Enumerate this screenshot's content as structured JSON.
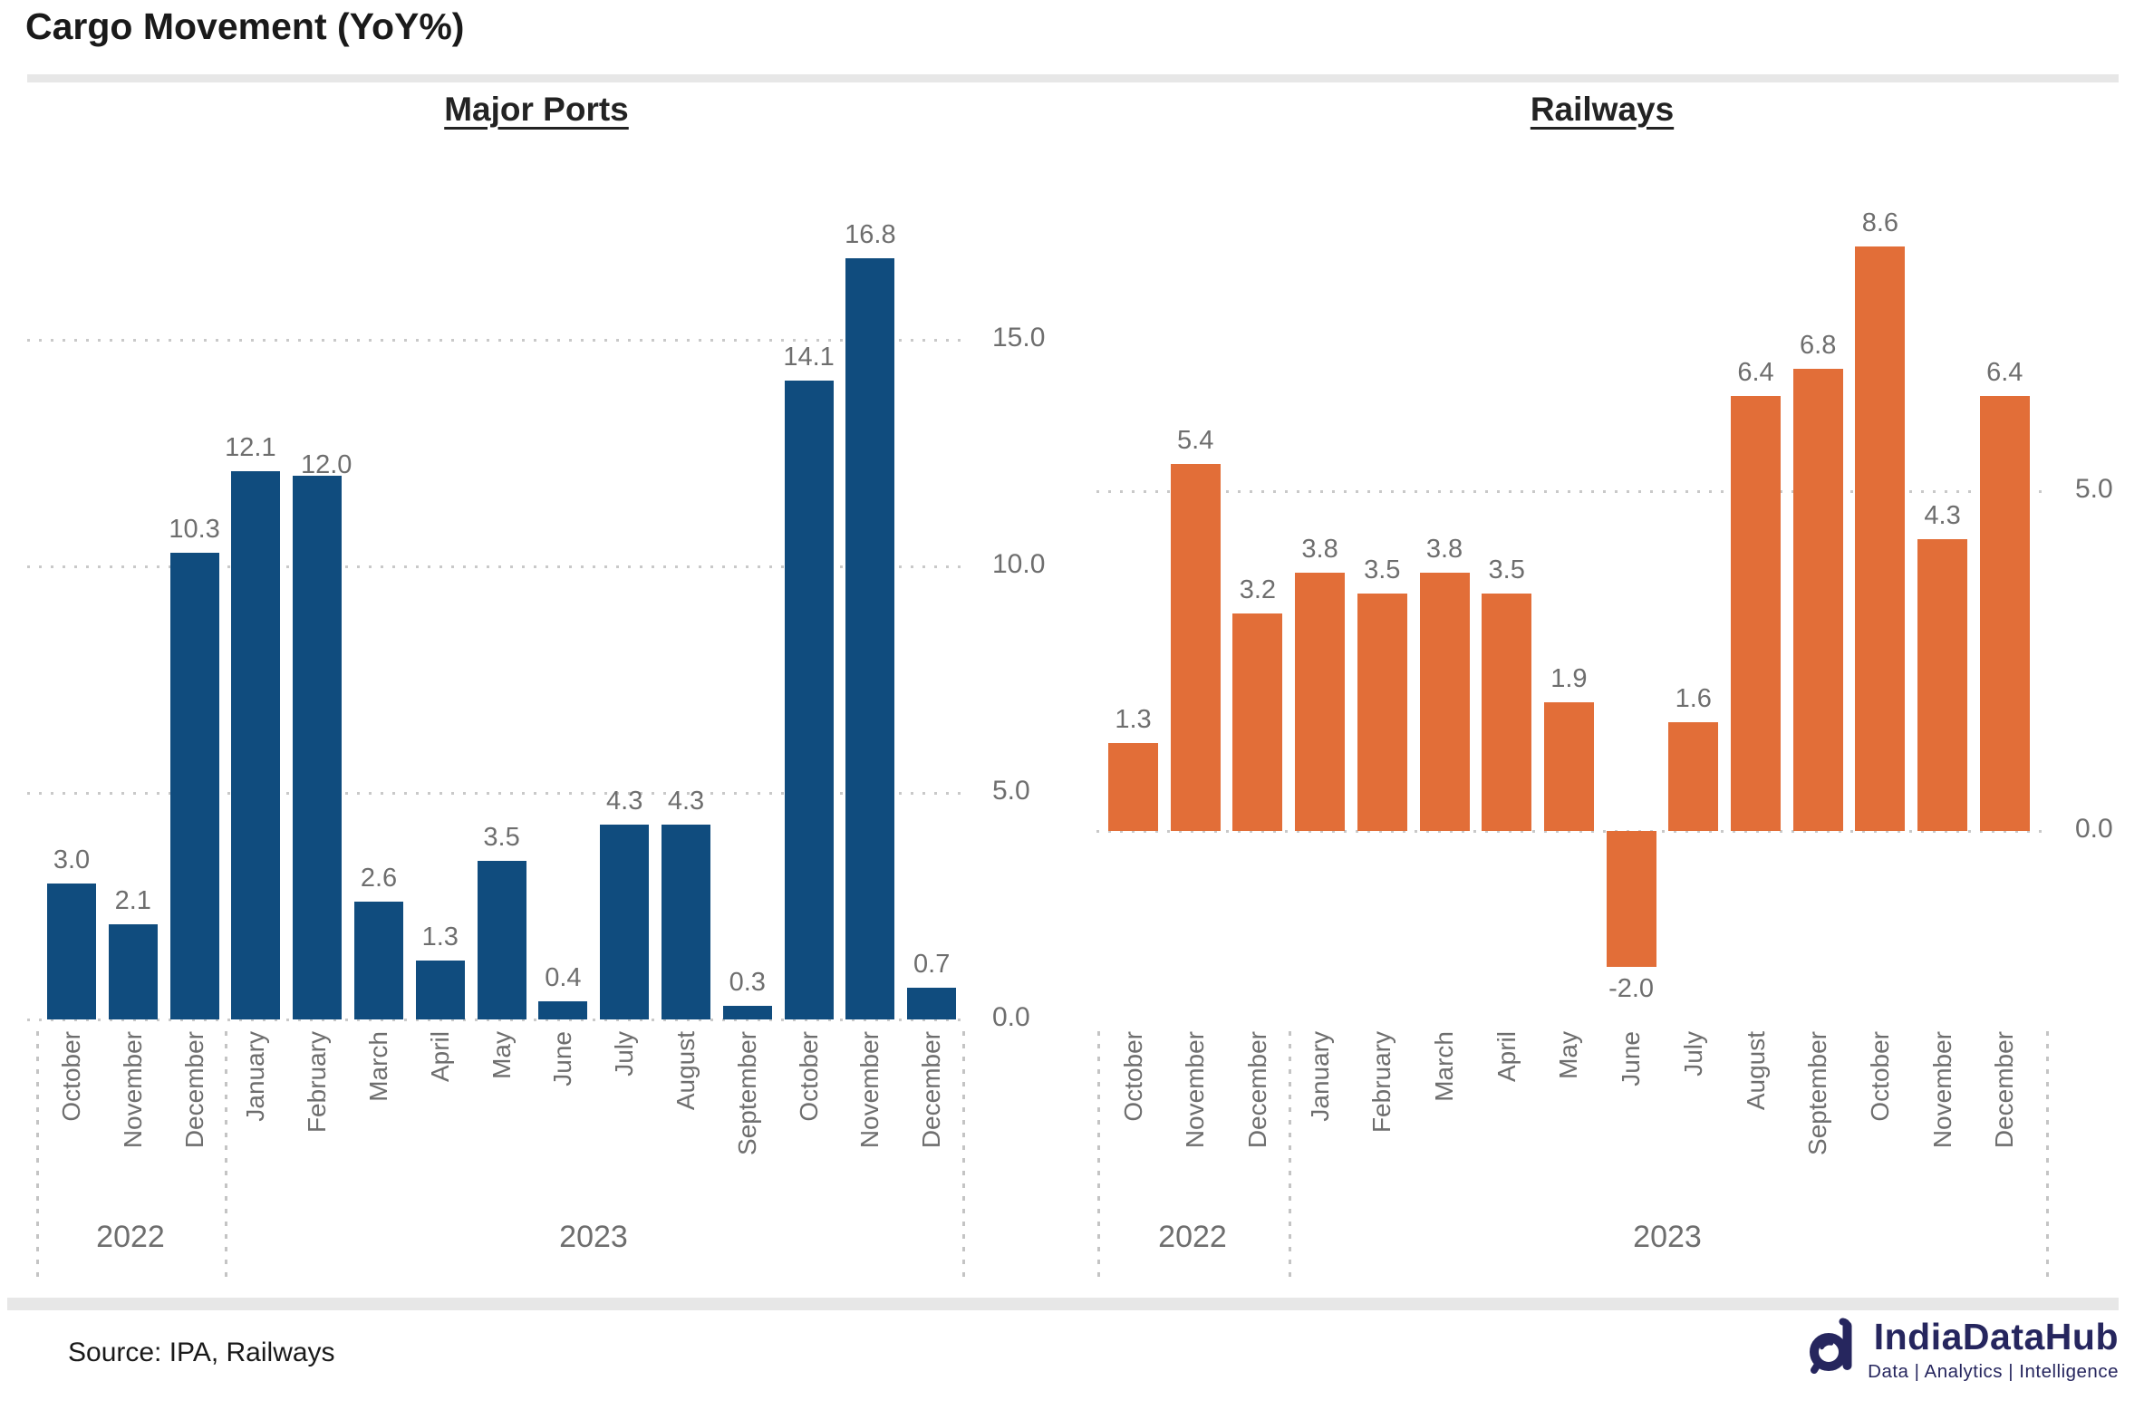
{
  "header": {
    "title": "Cargo Movement (YoY%)"
  },
  "footer": {
    "source": "Source: IPA, Railways",
    "logo": {
      "name": "IndiaDataHub",
      "tagline": "Data | Analytics | Intelligence"
    }
  },
  "colors": {
    "ports_bar": "#104c7e",
    "railways_bar": "#e26e38",
    "label_gray": "#6e6e6e",
    "grid_gray": "#c9c9c9",
    "logo_navy": "#26265e"
  },
  "chart_data": [
    {
      "type": "bar",
      "title": "Major Ports",
      "categories": [
        "October",
        "November",
        "December",
        "January",
        "February",
        "March",
        "April",
        "May",
        "June",
        "July",
        "August",
        "September",
        "October",
        "November",
        "December"
      ],
      "year_groups": [
        {
          "label": "2022",
          "months": 3
        },
        {
          "label": "2023",
          "months": 12
        }
      ],
      "values": [
        3.0,
        2.1,
        10.3,
        12.1,
        12.0,
        2.6,
        1.3,
        3.5,
        0.4,
        4.3,
        4.3,
        0.3,
        14.1,
        16.8,
        0.7
      ],
      "value_labels": [
        "3.0",
        "2.1",
        "10.3",
        "12.1",
        "12.0",
        "2.6",
        "1.3",
        "3.5",
        "0.4",
        "4.3",
        "4.3",
        "0.3",
        "14.1",
        "16.8",
        "0.7"
      ],
      "y_ticks": [
        15.0,
        10.0,
        5.0,
        0.0
      ],
      "ylim": [
        0,
        17.5
      ],
      "grid": true,
      "legend": "none",
      "bar_color": "#104c7e"
    },
    {
      "type": "bar",
      "title": "Railways",
      "categories": [
        "October",
        "November",
        "December",
        "January",
        "February",
        "March",
        "April",
        "May",
        "June",
        "July",
        "August",
        "September",
        "October",
        "November",
        "December"
      ],
      "year_groups": [
        {
          "label": "2022",
          "months": 3
        },
        {
          "label": "2023",
          "months": 12
        }
      ],
      "values": [
        1.3,
        5.4,
        3.2,
        3.8,
        3.5,
        3.8,
        3.5,
        1.9,
        -2.0,
        1.6,
        6.4,
        6.8,
        8.6,
        4.3,
        6.4
      ],
      "value_labels": [
        "1.3",
        "5.4",
        "3.2",
        "3.8",
        "3.5",
        "3.8",
        "3.5",
        "1.9",
        "-2.0",
        "1.6",
        "6.4",
        "6.8",
        "8.6",
        "4.3",
        "6.4"
      ],
      "y_ticks": [
        5.0,
        0.0
      ],
      "ylim": [
        -3.5,
        10
      ],
      "grid": true,
      "legend": "none",
      "bar_color": "#e26e38"
    }
  ]
}
